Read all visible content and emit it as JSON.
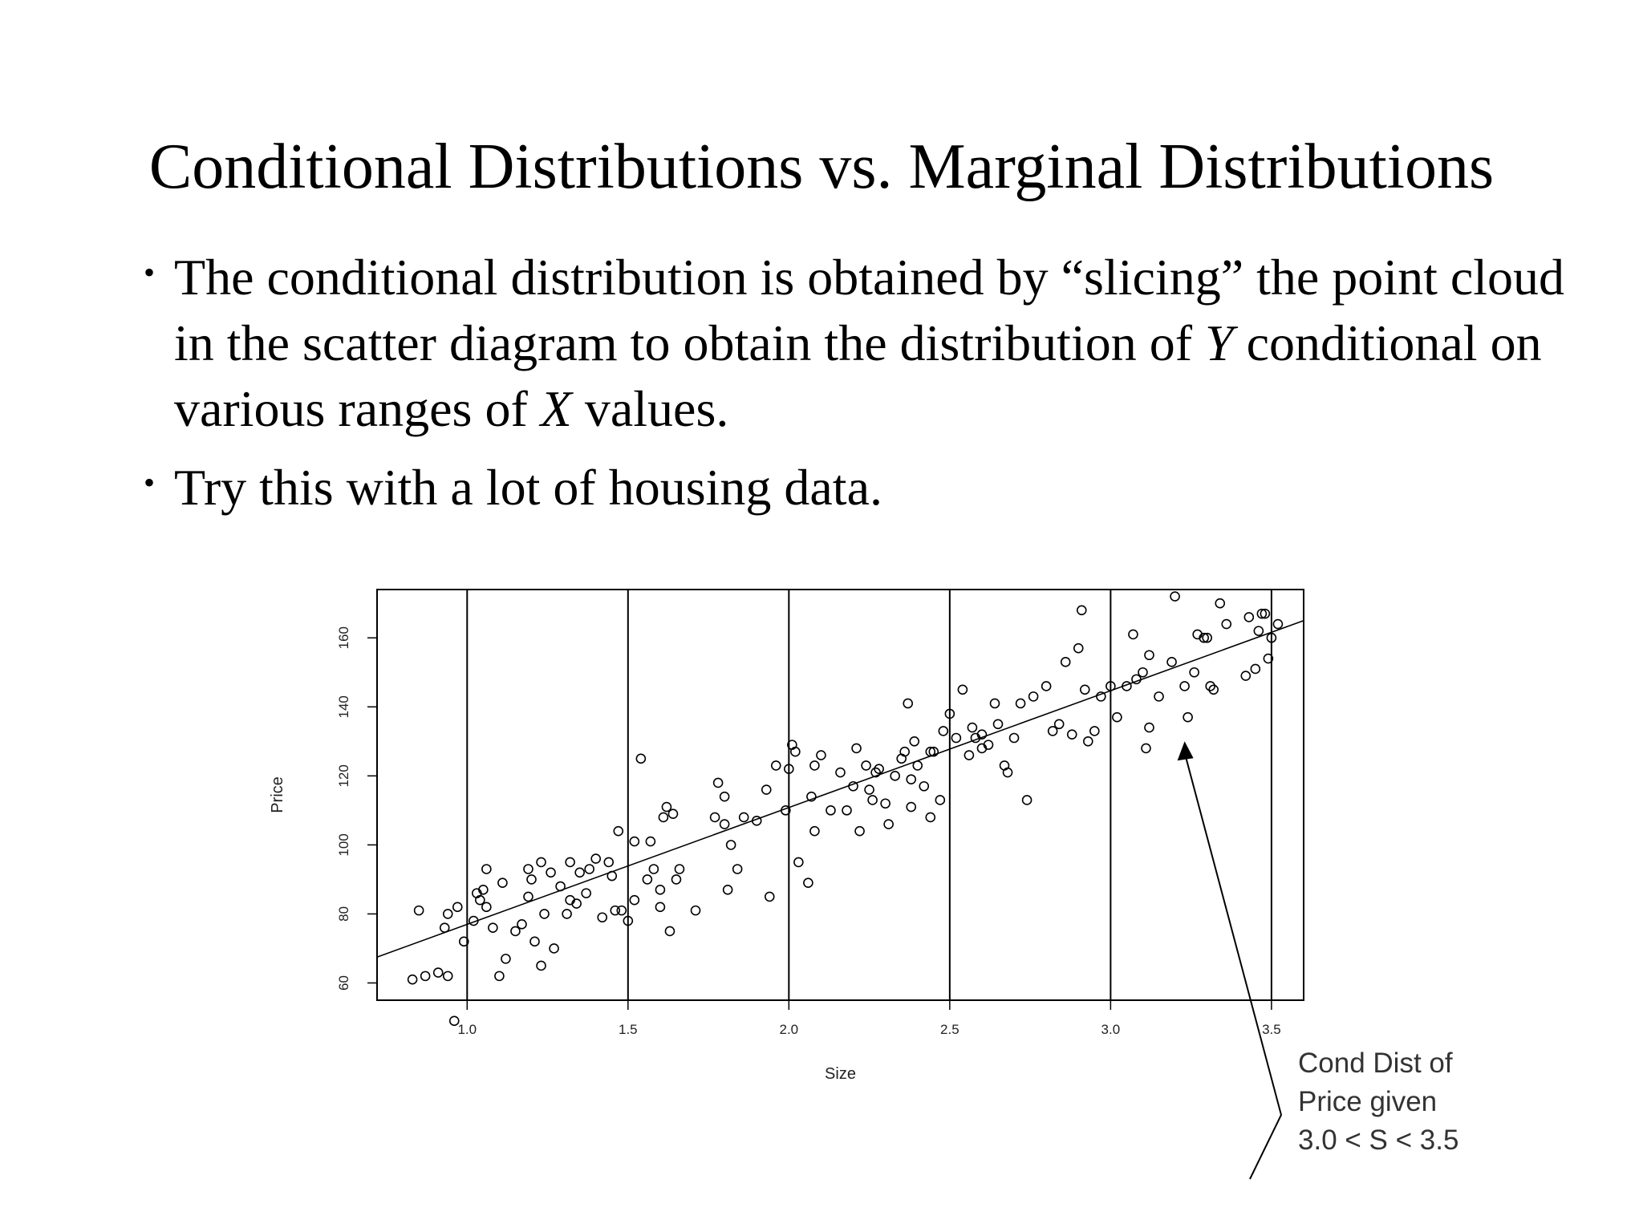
{
  "slide": {
    "title": "Conditional Distributions vs. Marginal Distributions",
    "bullet1": {
      "a": "The conditional distribution is obtained by “slicing” the point cloud in the scatter diagram to obtain the distribution of ",
      "y": "Y",
      "b": " conditional on various ranges of ",
      "x": "X",
      "c": " values."
    },
    "bullet2": "Try this with a lot of housing data.",
    "bullet_glyph": "•"
  },
  "callout": {
    "line1": "Cond Dist of",
    "line2": "Price given",
    "line3": "3.0 < S < 3.5"
  },
  "chart_data": {
    "type": "scatter",
    "title": "",
    "xlabel": "Size",
    "ylabel": "Price",
    "xlim": [
      0.72,
      3.6
    ],
    "ylim": [
      55,
      174
    ],
    "xticks": [
      "1.0",
      "1.5",
      "2.0",
      "2.5",
      "3.0",
      "3.5"
    ],
    "yticks": [
      "60",
      "80",
      "100",
      "120",
      "140",
      "160"
    ],
    "slice_lines_x": [
      1.0,
      1.5,
      2.0,
      2.5,
      3.0,
      3.5
    ],
    "regression_line": {
      "x": [
        0.72,
        3.6
      ],
      "y": [
        67.5,
        165
      ]
    },
    "grid": false,
    "points": [
      [
        0.83,
        61
      ],
      [
        0.87,
        62
      ],
      [
        0.91,
        63
      ],
      [
        0.94,
        62
      ],
      [
        0.96,
        49
      ],
      [
        0.85,
        81
      ],
      [
        0.93,
        76
      ],
      [
        0.94,
        80
      ],
      [
        0.97,
        82
      ],
      [
        0.99,
        72
      ],
      [
        1.02,
        78
      ],
      [
        1.03,
        86
      ],
      [
        1.04,
        84
      ],
      [
        1.06,
        82
      ],
      [
        1.08,
        76
      ],
      [
        1.1,
        62
      ],
      [
        1.12,
        67
      ],
      [
        1.15,
        75
      ],
      [
        1.17,
        77
      ],
      [
        1.05,
        87
      ],
      [
        1.06,
        93
      ],
      [
        1.11,
        89
      ],
      [
        1.19,
        85
      ],
      [
        1.2,
        90
      ],
      [
        1.21,
        72
      ],
      [
        1.23,
        65
      ],
      [
        1.24,
        80
      ],
      [
        1.19,
        93
      ],
      [
        1.23,
        95
      ],
      [
        1.27,
        70
      ],
      [
        1.29,
        88
      ],
      [
        1.31,
        80
      ],
      [
        1.32,
        95
      ],
      [
        1.34,
        83
      ],
      [
        1.35,
        92
      ],
      [
        1.38,
        93
      ],
      [
        1.4,
        96
      ],
      [
        1.44,
        95
      ],
      [
        1.45,
        91
      ],
      [
        1.46,
        81
      ],
      [
        1.48,
        81
      ],
      [
        1.42,
        79
      ],
      [
        1.47,
        104
      ],
      [
        1.5,
        78
      ],
      [
        1.52,
        101
      ],
      [
        1.52,
        84
      ],
      [
        1.56,
        90
      ],
      [
        1.57,
        101
      ],
      [
        1.58,
        93
      ],
      [
        1.6,
        87
      ],
      [
        1.6,
        82
      ],
      [
        1.61,
        108
      ],
      [
        1.63,
        75
      ],
      [
        1.65,
        90
      ],
      [
        1.66,
        93
      ],
      [
        1.62,
        111
      ],
      [
        1.64,
        109
      ],
      [
        1.71,
        81
      ],
      [
        1.54,
        125
      ],
      [
        1.77,
        108
      ],
      [
        1.8,
        114
      ],
      [
        1.81,
        87
      ],
      [
        1.82,
        100
      ],
      [
        1.84,
        93
      ],
      [
        1.78,
        118
      ],
      [
        1.8,
        106
      ],
      [
        1.86,
        108
      ],
      [
        1.9,
        107
      ],
      [
        1.93,
        116
      ],
      [
        1.94,
        85
      ],
      [
        1.96,
        123
      ],
      [
        1.99,
        110
      ],
      [
        2.0,
        122
      ],
      [
        2.01,
        129
      ],
      [
        2.02,
        127
      ],
      [
        2.03,
        95
      ],
      [
        2.06,
        89
      ],
      [
        2.07,
        114
      ],
      [
        2.08,
        104
      ],
      [
        2.08,
        123
      ],
      [
        2.1,
        126
      ],
      [
        2.13,
        110
      ],
      [
        2.16,
        121
      ],
      [
        2.18,
        110
      ],
      [
        2.2,
        117
      ],
      [
        2.21,
        128
      ],
      [
        2.22,
        104
      ],
      [
        2.24,
        123
      ],
      [
        2.25,
        116
      ],
      [
        2.26,
        113
      ],
      [
        2.28,
        122
      ],
      [
        2.3,
        112
      ],
      [
        2.31,
        106
      ],
      [
        2.33,
        120
      ],
      [
        2.35,
        125
      ],
      [
        2.37,
        141
      ],
      [
        2.38,
        111
      ],
      [
        2.39,
        130
      ],
      [
        2.4,
        123
      ],
      [
        2.42,
        117
      ],
      [
        2.44,
        108
      ],
      [
        2.45,
        127
      ],
      [
        2.47,
        113
      ],
      [
        2.48,
        133
      ],
      [
        2.5,
        138
      ],
      [
        2.52,
        131
      ],
      [
        2.54,
        145
      ],
      [
        2.56,
        126
      ],
      [
        2.57,
        134
      ],
      [
        2.58,
        131
      ],
      [
        2.6,
        128
      ],
      [
        2.62,
        129
      ],
      [
        2.64,
        141
      ],
      [
        2.65,
        135
      ],
      [
        2.67,
        123
      ],
      [
        2.68,
        121
      ],
      [
        2.7,
        131
      ],
      [
        2.72,
        141
      ],
      [
        2.74,
        113
      ],
      [
        2.76,
        143
      ],
      [
        2.8,
        146
      ],
      [
        2.82,
        133
      ],
      [
        2.84,
        135
      ],
      [
        2.86,
        153
      ],
      [
        2.88,
        132
      ],
      [
        2.9,
        157
      ],
      [
        2.91,
        168
      ],
      [
        2.92,
        145
      ],
      [
        2.93,
        130
      ],
      [
        2.95,
        133
      ],
      [
        2.97,
        143
      ],
      [
        3.0,
        146
      ],
      [
        3.02,
        137
      ],
      [
        3.05,
        146
      ],
      [
        3.07,
        161
      ],
      [
        3.08,
        148
      ],
      [
        3.1,
        150
      ],
      [
        3.11,
        128
      ],
      [
        3.12,
        155
      ],
      [
        3.15,
        143
      ],
      [
        3.19,
        153
      ],
      [
        3.2,
        172
      ],
      [
        3.23,
        146
      ],
      [
        3.24,
        137
      ],
      [
        3.26,
        150
      ],
      [
        3.27,
        161
      ],
      [
        3.29,
        160
      ],
      [
        3.3,
        160
      ],
      [
        3.32,
        145
      ],
      [
        3.34,
        170
      ],
      [
        3.36,
        164
      ],
      [
        3.42,
        149
      ],
      [
        3.45,
        151
      ],
      [
        3.47,
        167
      ],
      [
        3.48,
        167
      ],
      [
        3.49,
        154
      ],
      [
        3.5,
        160
      ],
      [
        3.52,
        164
      ],
      [
        3.46,
        162
      ],
      [
        3.43,
        166
      ],
      [
        3.31,
        146
      ],
      [
        3.12,
        134
      ],
      [
        2.44,
        127
      ],
      [
        2.38,
        119
      ],
      [
        2.6,
        132
      ],
      [
        1.26,
        92
      ],
      [
        1.32,
        84
      ],
      [
        1.37,
        86
      ],
      [
        2.27,
        121
      ],
      [
        2.36,
        127
      ]
    ]
  }
}
